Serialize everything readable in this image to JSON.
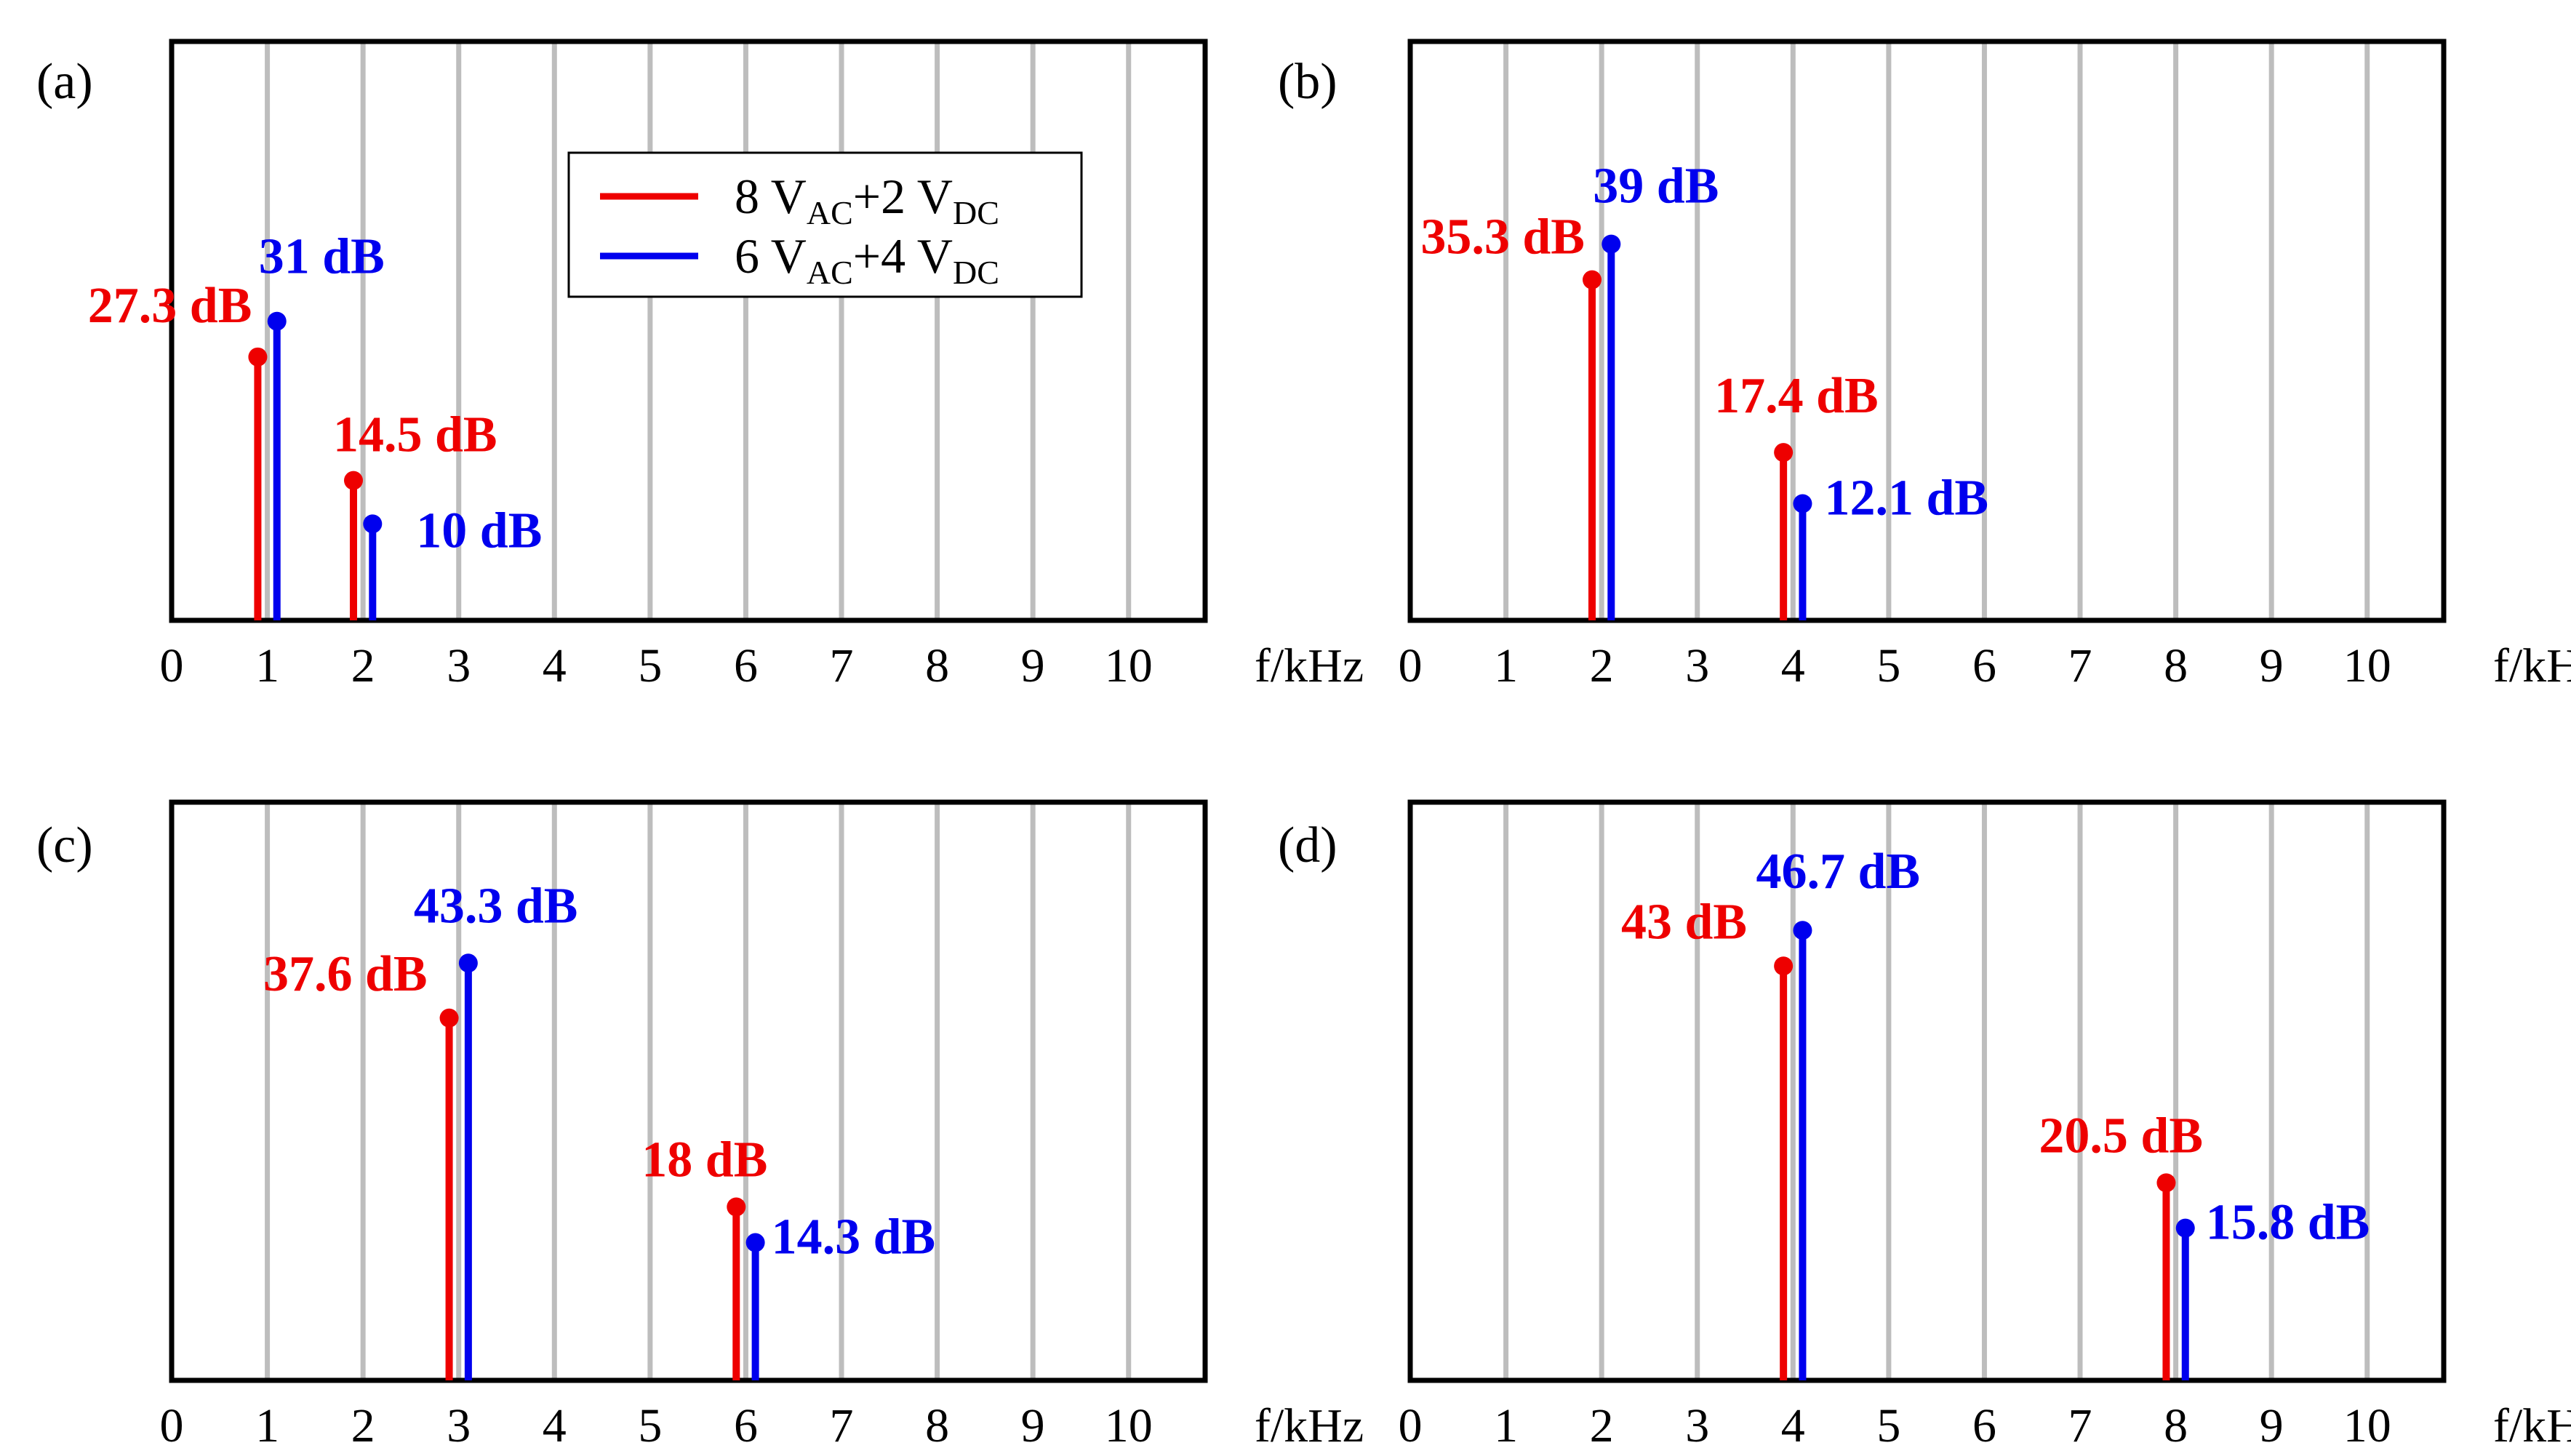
{
  "colors": {
    "series_1": "#ee0000",
    "series_2": "#0000ee",
    "grid": "#bdbdbd",
    "frame": "#000000"
  },
  "legend": {
    "entries": [
      {
        "series": 0,
        "num_ac": "8 V",
        "sub_ac": "AC",
        "num_dc": "+2 V",
        "sub_dc": "DC"
      },
      {
        "series": 1,
        "num_ac": "6 V",
        "sub_ac": "AC",
        "num_dc": "+4 V",
        "sub_dc": "DC"
      }
    ]
  },
  "chart_data": [
    {
      "type": "stem",
      "panel_label": "(a)",
      "xlabel": "f/kHz",
      "x_ticks": [
        "0",
        "1",
        "2",
        "3",
        "4",
        "5",
        "6",
        "7",
        "8",
        "9",
        "10"
      ],
      "xlim": [
        0,
        10.8
      ],
      "ylim": [
        0,
        60
      ],
      "series": [
        {
          "name": "8 VAC+2 VDC",
          "x": [
            0.9,
            1.9
          ],
          "y": [
            27.3,
            14.5
          ],
          "labels": [
            "27.3 dB",
            "14.5 dB"
          ]
        },
        {
          "name": "6 VAC+4 VDC",
          "x": [
            1.1,
            2.1
          ],
          "y": [
            31,
            10
          ],
          "labels": [
            "31 dB",
            "10 dB"
          ]
        }
      ]
    },
    {
      "type": "stem",
      "panel_label": "(b)",
      "xlabel": "f/kHz",
      "x_ticks": [
        "0",
        "1",
        "2",
        "3",
        "4",
        "5",
        "6",
        "7",
        "8",
        "9",
        "10"
      ],
      "xlim": [
        0,
        10.8
      ],
      "ylim": [
        0,
        60
      ],
      "series": [
        {
          "name": "8 VAC+2 VDC",
          "x": [
            1.9,
            3.9
          ],
          "y": [
            35.3,
            17.4
          ],
          "labels": [
            "35.3 dB",
            "17.4 dB"
          ]
        },
        {
          "name": "6 VAC+4 VDC",
          "x": [
            2.1,
            4.1
          ],
          "y": [
            39,
            12.1
          ],
          "labels": [
            "39 dB",
            "12.1 dB"
          ]
        }
      ]
    },
    {
      "type": "stem",
      "panel_label": "(c)",
      "xlabel": "f/kHz",
      "x_ticks": [
        "0",
        "1",
        "2",
        "3",
        "4",
        "5",
        "6",
        "7",
        "8",
        "9",
        "10"
      ],
      "xlim": [
        0,
        10.8
      ],
      "ylim": [
        0,
        60
      ],
      "series": [
        {
          "name": "8 VAC+2 VDC",
          "x": [
            2.9,
            5.9
          ],
          "y": [
            37.6,
            18
          ],
          "labels": [
            "37.6 dB",
            "18 dB"
          ]
        },
        {
          "name": "6 VAC+4 VDC",
          "x": [
            3.1,
            6.1
          ],
          "y": [
            43.3,
            14.3
          ],
          "labels": [
            "43.3 dB",
            "14.3 dB"
          ]
        }
      ]
    },
    {
      "type": "stem",
      "panel_label": "(d)",
      "xlabel": "f/kHz",
      "x_ticks": [
        "0",
        "1",
        "2",
        "3",
        "4",
        "5",
        "6",
        "7",
        "8",
        "9",
        "10"
      ],
      "xlim": [
        0,
        10.8
      ],
      "ylim": [
        0,
        60
      ],
      "series": [
        {
          "name": "8 VAC+2 VDC",
          "x": [
            3.9,
            7.9
          ],
          "y": [
            43,
            20.5
          ],
          "labels": [
            "43 dB",
            "20.5 dB"
          ]
        },
        {
          "name": "6 VAC+4 VDC",
          "x": [
            4.1,
            8.1
          ],
          "y": [
            46.7,
            15.8
          ],
          "labels": [
            "46.7 dB",
            "15.8 dB"
          ]
        }
      ]
    }
  ]
}
